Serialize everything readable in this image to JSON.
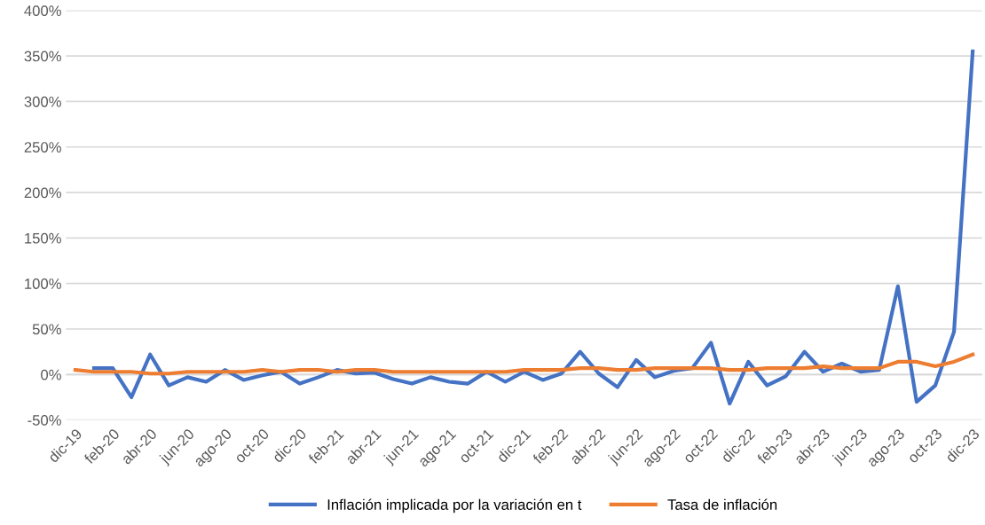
{
  "chart_data": {
    "type": "line",
    "categories": [
      "dic-19",
      null,
      "feb-20",
      null,
      "abr-20",
      null,
      "jun-20",
      null,
      "ago-20",
      null,
      "oct-20",
      null,
      "dic-20",
      null,
      "feb-21",
      null,
      "abr-21",
      null,
      "jun-21",
      null,
      "ago-21",
      null,
      "oct-21",
      null,
      "dic-21",
      null,
      "feb-22",
      null,
      "abr-22",
      null,
      "jun-22",
      null,
      "ago-22",
      null,
      "oct-22",
      null,
      "dic-22",
      null,
      "feb-23",
      null,
      "abr-23",
      null,
      "jun-23",
      null,
      "ago-23",
      null,
      "oct-23",
      null,
      "dic-23"
    ],
    "series": [
      {
        "name": "Inflación implicada por la variación en t",
        "color": "#4472c4",
        "values": [
          null,
          7,
          7,
          -25,
          22,
          -12,
          -3,
          -8,
          5,
          -6,
          -1,
          3,
          -10,
          -3,
          5,
          1,
          2,
          -5,
          -10,
          -3,
          -8,
          -10,
          3,
          -8,
          3,
          -6,
          1,
          25,
          1,
          -14,
          16,
          -3,
          4,
          7,
          35,
          -32,
          14,
          -12,
          -2,
          25,
          3,
          12,
          3,
          5,
          97,
          -30,
          -12,
          47,
          355
        ]
      },
      {
        "name": "Tasa de inflación",
        "color": "#ed7d31",
        "values": [
          5,
          3,
          3,
          3,
          1,
          1,
          3,
          3,
          3,
          3,
          5,
          3,
          5,
          5,
          3,
          5,
          5,
          3,
          3,
          3,
          3,
          3,
          3,
          3,
          5,
          5,
          5,
          7,
          7,
          5,
          5,
          7,
          7,
          7,
          7,
          5,
          5,
          7,
          7,
          7,
          9,
          7,
          7,
          7,
          14,
          14,
          9,
          14,
          22
        ]
      }
    ],
    "ylim": [
      -50,
      400
    ],
    "yticks": [
      {
        "value": -50,
        "label": "-50%"
      },
      {
        "value": 0,
        "label": "0%"
      },
      {
        "value": 50,
        "label": "50%"
      },
      {
        "value": 100,
        "label": "100%"
      },
      {
        "value": 150,
        "label": "150%"
      },
      {
        "value": 200,
        "label": "200%"
      },
      {
        "value": 250,
        "label": "250%"
      },
      {
        "value": 300,
        "label": "300%"
      },
      {
        "value": 350,
        "label": "350%"
      },
      {
        "value": 400,
        "label": "400%"
      }
    ],
    "grid": "y",
    "legend": "bottom",
    "marker": "none",
    "line_style": "solid"
  }
}
